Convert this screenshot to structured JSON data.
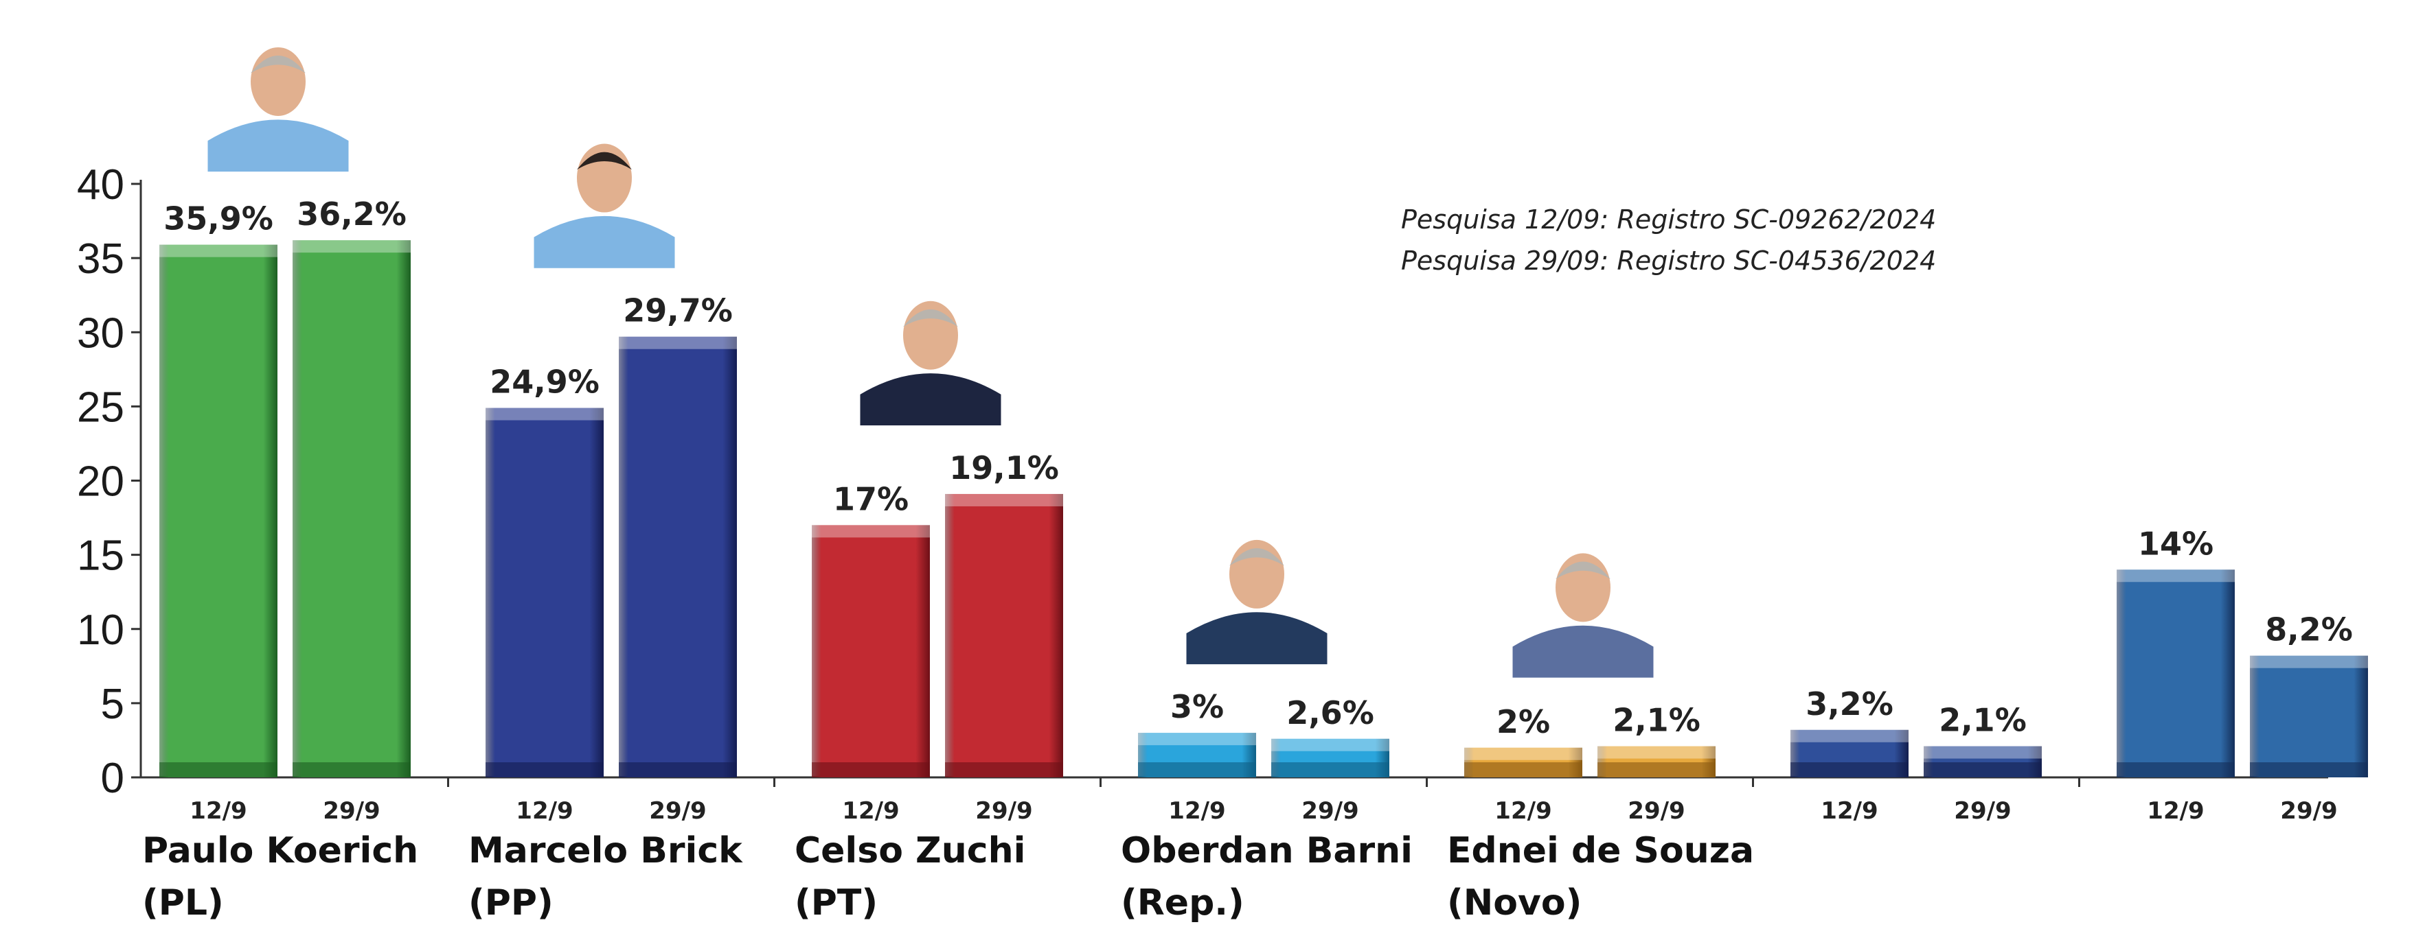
{
  "chart_data": {
    "type": "bar",
    "ylim": [
      0,
      40
    ],
    "yticks": [
      "0",
      "5",
      "10",
      "15",
      "20",
      "25",
      "30",
      "35",
      "40"
    ],
    "grid": false,
    "legend": "none",
    "series_labels": [
      "12/9",
      "29/9"
    ],
    "notes": [
      "Pesquisa 12/09: Registro SC-09262/2024",
      "Pesquisa 29/09: Registro SC-04536/2024"
    ],
    "groups": [
      {
        "name_line1": "Paulo Koerich",
        "name_line2": "(PL)",
        "color": "#4aab4c",
        "dark": "#1c5f22",
        "photo": true,
        "photo_icon": "candidate-photo",
        "values": [
          35.9,
          36.2
        ],
        "labels": [
          "35,9%",
          "36,2%"
        ]
      },
      {
        "name_line1": "Marcelo Brick",
        "name_line2": "(PP)",
        "color": "#2e3f92",
        "dark": "#141d52",
        "photo": true,
        "photo_icon": "candidate-photo",
        "values": [
          24.9,
          29.7
        ],
        "labels": [
          "24,9%",
          "29,7%"
        ]
      },
      {
        "name_line1": "Celso Zuchi",
        "name_line2": "(PT)",
        "color": "#c22a32",
        "dark": "#6e1017",
        "photo": true,
        "photo_icon": "candidate-photo",
        "values": [
          17,
          19.1
        ],
        "labels": [
          "17%",
          "19,1%"
        ]
      },
      {
        "name_line1": "Oberdan Barni",
        "name_line2": "(Rep.)",
        "color": "#2aa5dc",
        "dark": "#0f5f86",
        "photo": true,
        "photo_icon": "candidate-photo",
        "values": [
          3,
          2.6
        ],
        "labels": [
          "3%",
          "2,6%"
        ]
      },
      {
        "name_line1": "Ednei de Souza",
        "name_line2": "(Novo)",
        "color": "#e8a93d",
        "dark": "#8a5a12",
        "photo": true,
        "photo_icon": "candidate-photo",
        "values": [
          2,
          2.1
        ],
        "labels": [
          "2%",
          "2,1%"
        ]
      },
      {
        "name_line1": "",
        "name_line2": "",
        "color": "#2f4f9a",
        "dark": "#141f4e",
        "photo": false,
        "values": [
          3.2,
          2.1
        ],
        "labels": [
          "3,2%",
          "2,1%"
        ]
      },
      {
        "name_line1": "",
        "name_line2": "",
        "color": "#2f6aa8",
        "dark": "#142f5a",
        "photo": false,
        "values": [
          14,
          8.2
        ],
        "labels": [
          "14%",
          "8,2%"
        ]
      }
    ]
  }
}
